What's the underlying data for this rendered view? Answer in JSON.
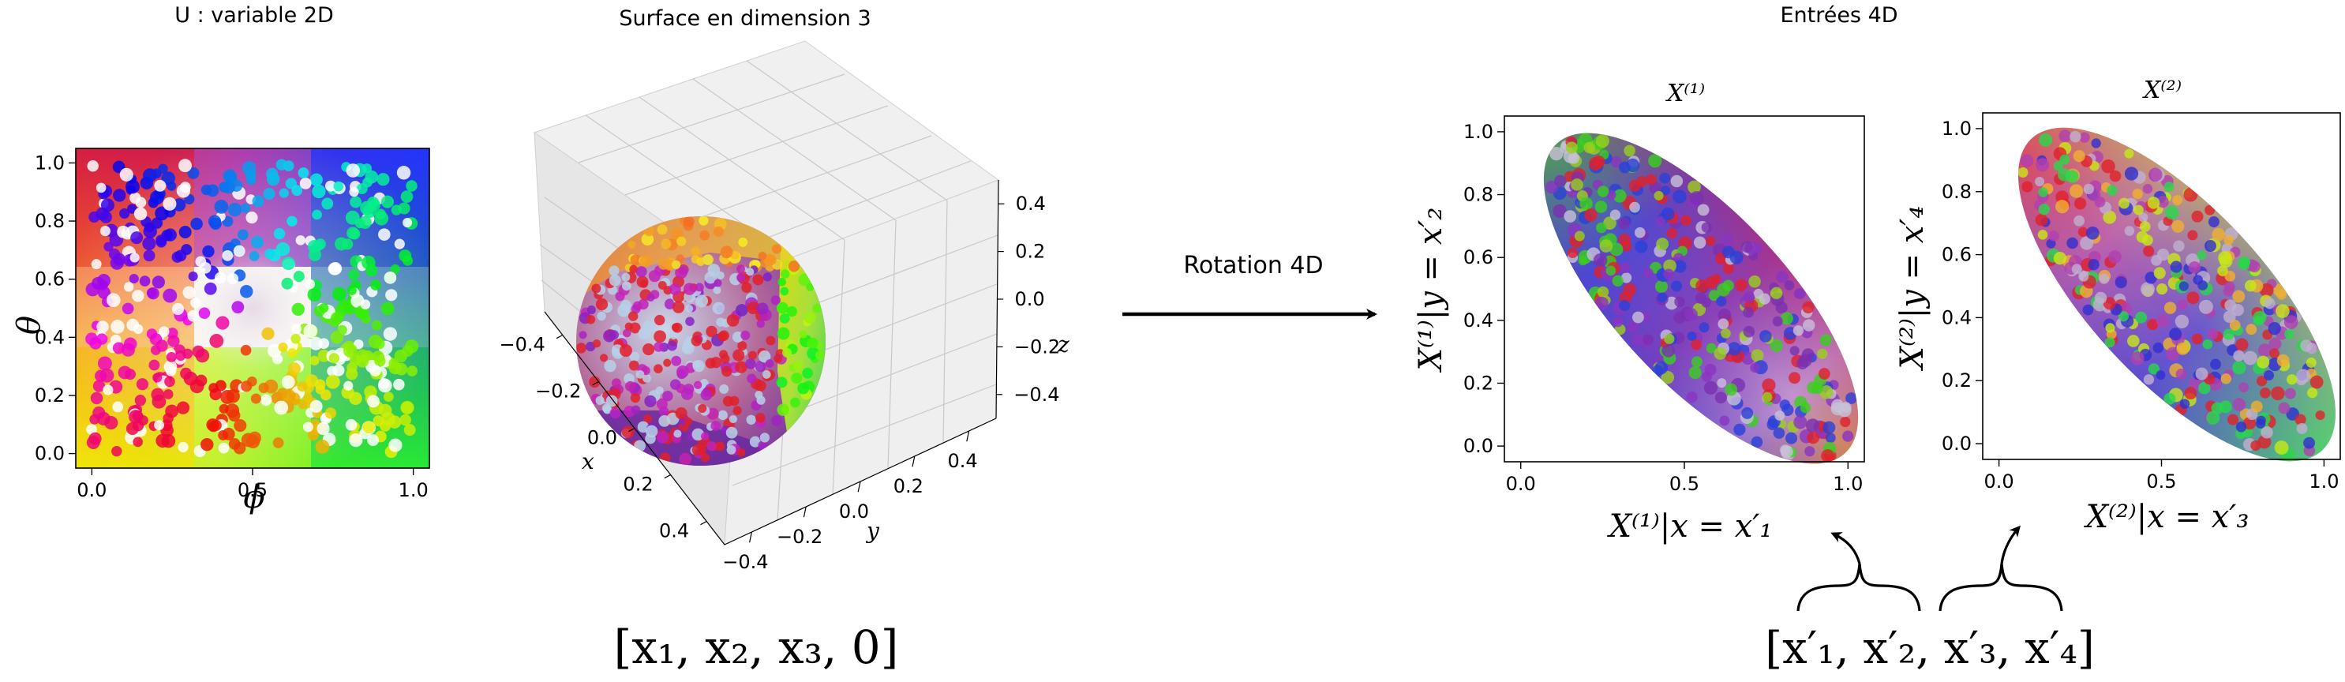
{
  "titles": {
    "left": "U : variable 2D",
    "middle": "Surface en dimension 3",
    "right": "Entrées 4D",
    "rotation": "Rotation 4D"
  },
  "panel_u": {
    "ylabel": "θ",
    "xlabel": "ϕ",
    "xticks": [
      "0.0",
      "0.5",
      "1.0"
    ],
    "yticks": [
      "0.0",
      "0.2",
      "0.4",
      "0.6",
      "0.8",
      "1.0"
    ]
  },
  "panel_3d": {
    "x_axis_label": "x",
    "y_axis_label": "y",
    "z_axis_label": "z",
    "x_ticks": [
      "−0.4",
      "−0.2",
      "0.0",
      "0.2",
      "0.4"
    ],
    "y_ticks": [
      "−0.4",
      "−0.2",
      "0.0",
      "0.2",
      "0.4"
    ],
    "z_ticks": [
      "0.4",
      "0.2",
      "0.0",
      "−0.2",
      "−0.4"
    ],
    "vector_label": "[x₁, x₂, x₃, 0]"
  },
  "panel_x1": {
    "title": "X⁽¹⁾",
    "ylabel": "X⁽¹⁾|y = x′₂",
    "xlabel": "X⁽¹⁾|x = x′₁",
    "xticks": [
      "0.0",
      "0.5",
      "1.0"
    ],
    "yticks": [
      "0.0",
      "0.2",
      "0.4",
      "0.6",
      "0.8",
      "1.0"
    ]
  },
  "panel_x2": {
    "title": "X⁽²⁾",
    "ylabel": "X⁽²⁾|y = x′₄",
    "xlabel": "X⁽²⁾|x = x′₃",
    "xticks": [
      "0.0",
      "0.5",
      "1.0"
    ],
    "yticks": [
      "0.0",
      "0.2",
      "0.4",
      "0.6",
      "0.8",
      "1.0"
    ]
  },
  "output_vector": "[x′₁, x′₂, x′₃, x′₄]",
  "colors": {
    "ink": "#000000",
    "pane_left": "#e8e8e8",
    "pane_right": "#f2f2f2",
    "grid": "#cfcfcf"
  }
}
